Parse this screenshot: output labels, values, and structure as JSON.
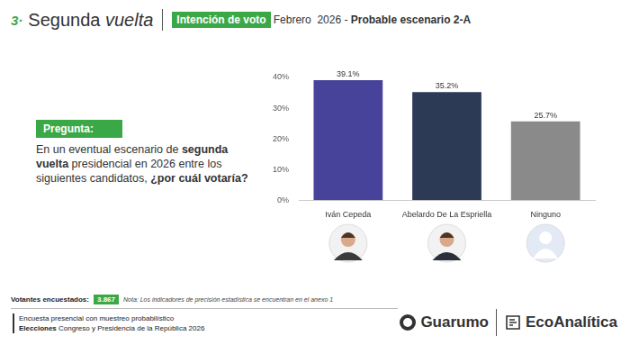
{
  "header": {
    "number": "3·",
    "title": "Segunda",
    "title_italic": "vuelta",
    "badge": "Intención de voto",
    "date": "Febrero  2026 - ",
    "scenario": "Probable escenario 2-A"
  },
  "question": {
    "label": "Pregunta:",
    "parts": [
      {
        "text": "En un eventual escenario de ",
        "bold": false
      },
      {
        "text": "segunda vuelta",
        "bold": true
      },
      {
        "text": " presidencial en 2026 entre los siguientes candidatos, ",
        "bold": false
      },
      {
        "text": "¿por cuál votaría?",
        "bold": true
      }
    ]
  },
  "footer": {
    "respondents_label": "Votantes encuestados:",
    "respondents": "3.867",
    "note": "Nota: Los indicadores de precisión estadística se encuentran en el anexo 1",
    "method": "Encuesta presencial con muestreo probabilístico",
    "election_bold": "Elecciones",
    "election": " Congreso y Presidencia de la República 2026"
  },
  "logos": [
    "Guarumo",
    "EcoAnalítica"
  ],
  "chart_data": {
    "type": "bar",
    "categories": [
      "Iván Cepeda",
      "Abelardo De La Espriella",
      "Ninguno"
    ],
    "values": [
      39.1,
      35.2,
      25.7
    ],
    "value_labels": [
      "39.1%",
      "35.2%",
      "25.7%"
    ],
    "colors": [
      "#47429a",
      "#2d3a56",
      "#8a8a8a"
    ],
    "ylim": [
      0,
      40
    ],
    "yticks": [
      {
        "value": 0,
        "label": "0%"
      },
      {
        "value": 10,
        "label": "10%"
      },
      {
        "value": 20,
        "label": "20%"
      },
      {
        "value": 30,
        "label": "30%"
      },
      {
        "value": 40,
        "label": "40%"
      }
    ],
    "grid": false,
    "data_labels": true
  }
}
